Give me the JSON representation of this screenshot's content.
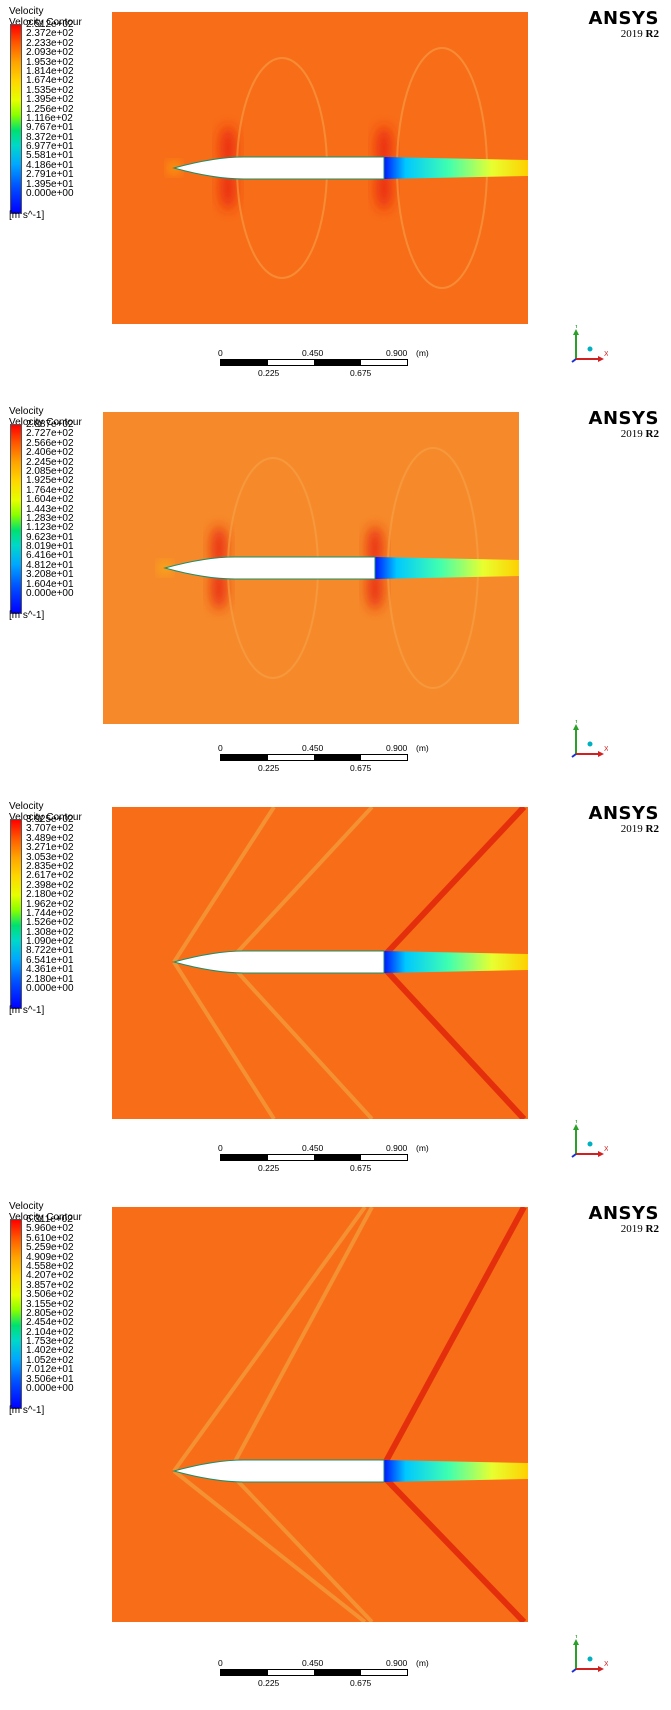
{
  "panels": [
    {
      "legend_title": "Velocity",
      "legend_subtitle": "Velocity Contour",
      "colorbar_labels": [
        "2.512e+02",
        "2.372e+02",
        "2.233e+02",
        "2.093e+02",
        "1.953e+02",
        "1.814e+02",
        "1.674e+02",
        "1.535e+02",
        "1.395e+02",
        "1.256e+02",
        "1.116e+02",
        "9.767e+01",
        "8.372e+01",
        "6.977e+01",
        "5.581e+01",
        "4.186e+01",
        "2.791e+01",
        "1.395e+01",
        "0.000e+00"
      ],
      "unit": "[m s^-1]",
      "flow_regime": "subsonic"
    },
    {
      "legend_title": "Velocity",
      "legend_subtitle": "Velocity Contour",
      "colorbar_labels": [
        "2.887e+02",
        "2.727e+02",
        "2.566e+02",
        "2.406e+02",
        "2.245e+02",
        "2.085e+02",
        "1.925e+02",
        "1.764e+02",
        "1.604e+02",
        "1.443e+02",
        "1.283e+02",
        "1.123e+02",
        "9.623e+01",
        "8.019e+01",
        "6.416e+01",
        "4.812e+01",
        "3.208e+01",
        "1.604e+01",
        "0.000e+00"
      ],
      "unit": "[m s^-1]",
      "flow_regime": "transonic"
    },
    {
      "legend_title": "Velocity",
      "legend_subtitle": "Velocity Contour",
      "colorbar_labels": [
        "3.925e+02",
        "3.707e+02",
        "3.489e+02",
        "3.271e+02",
        "3.053e+02",
        "2.835e+02",
        "2.617e+02",
        "2.398e+02",
        "2.180e+02",
        "1.962e+02",
        "1.744e+02",
        "1.526e+02",
        "1.308e+02",
        "1.090e+02",
        "8.722e+01",
        "6.541e+01",
        "4.361e+01",
        "2.180e+01",
        "0.000e+00"
      ],
      "unit": "[m s^-1]",
      "flow_regime": "supersonic"
    },
    {
      "legend_title": "Velocity",
      "legend_subtitle": "Velocity Contour",
      "colorbar_labels": [
        "6.311e+02",
        "5.960e+02",
        "5.610e+02",
        "5.259e+02",
        "4.909e+02",
        "4.558e+02",
        "4.207e+02",
        "3.857e+02",
        "3.506e+02",
        "3.155e+02",
        "2.805e+02",
        "2.454e+02",
        "2.104e+02",
        "1.753e+02",
        "1.402e+02",
        "1.052e+02",
        "7.012e+01",
        "3.506e+01",
        "0.000e+00"
      ],
      "unit": "[m s^-1]",
      "flow_regime": "hypersonic"
    }
  ],
  "brand": {
    "logo": "ANSYS",
    "version_prefix": "2019 ",
    "version_bold": "R2"
  },
  "scale": {
    "t0": "0",
    "t1": "0.450",
    "t2": "0.900",
    "unit": "(m)",
    "b1": "0.225",
    "b2": "0.675"
  },
  "axes": {
    "y": "Y",
    "x": "X"
  },
  "colors": {
    "field": "#f96a12",
    "body": "#ffffff",
    "wake": "#ffe600",
    "shock": "#e9230b"
  }
}
